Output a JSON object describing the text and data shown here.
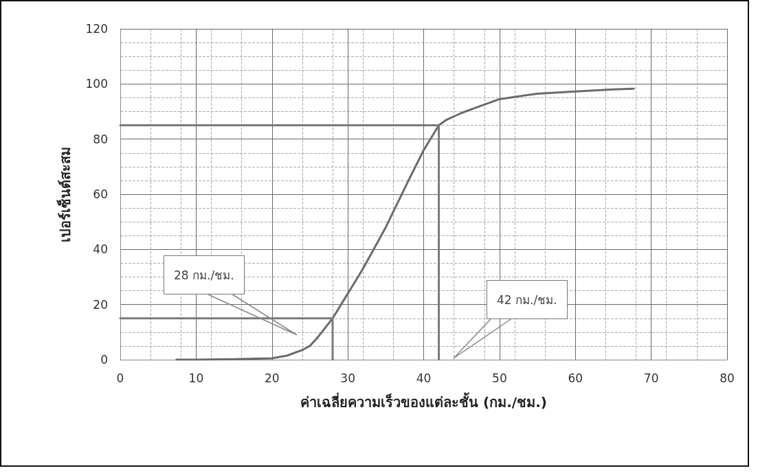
{
  "chart_data": {
    "type": "line",
    "xlabel": "ค่าเฉลี่ยความเร็วของแต่ละชั้น (กม./ชม.)",
    "ylabel": "เปอร์เซ็นต์สะสม",
    "series": [
      {
        "color": "#6b6b6b",
        "x": [
          7.4,
          10,
          15,
          20,
          22,
          24,
          25,
          26,
          28,
          30,
          32,
          35,
          38,
          40,
          42,
          43,
          45,
          48,
          50,
          55,
          60,
          65,
          67.7
        ],
        "values": [
          0,
          0,
          0.2,
          0.5,
          1.5,
          3.5,
          5,
          8,
          15,
          24,
          33,
          48,
          65,
          76,
          85,
          87,
          89.5,
          92.5,
          94.5,
          96.5,
          97.3,
          98,
          98.3
        ]
      },
      {
        "color": "#7a7a7a",
        "x": [
          0,
          28,
          28
        ],
        "values": [
          15,
          15,
          0
        ]
      },
      {
        "color": "#7a7a7a",
        "x": [
          0,
          42,
          42
        ],
        "values": [
          85,
          85,
          0
        ]
      }
    ],
    "xlim": [
      0,
      80
    ],
    "xticks": [
      0,
      10,
      20,
      30,
      40,
      50,
      60,
      70,
      80
    ],
    "ylim": [
      0,
      120
    ],
    "yticks": [
      0,
      20,
      40,
      60,
      80,
      100,
      120
    ],
    "grid": true,
    "marker": "none",
    "line_style": "solid",
    "annotations": [
      "28 กม./ชม.",
      "42 กม./ชม."
    ]
  }
}
